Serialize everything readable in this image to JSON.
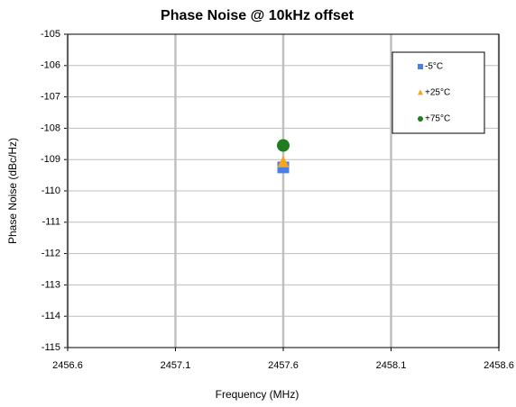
{
  "chart_data": {
    "type": "scatter",
    "title": "Phase Noise @ 10kHz offset",
    "x_label": "Frequency (MHz)",
    "y_label": "Phase Noise (dBc/Hz)",
    "xlim": [
      2456.6,
      2458.6
    ],
    "xticks": [
      2456.6,
      2457.1,
      2457.6,
      2458.1,
      2458.6
    ],
    "ylim": [
      -115,
      -105
    ],
    "yticks": [
      -105,
      -106,
      -107,
      -108,
      -109,
      -110,
      -111,
      -112,
      -113,
      -114,
      -115
    ],
    "grid": true,
    "legend": "upper right",
    "series": [
      {
        "name": "-5°C",
        "color": "#4a7ee8",
        "marker": "square",
        "x": [
          2457.6
        ],
        "values": [
          -109.25
        ]
      },
      {
        "name": "+25°C",
        "color": "#f5a51e",
        "marker": "triangle",
        "x": [
          2457.6
        ],
        "values": [
          -109.1
        ]
      },
      {
        "name": "+75°C",
        "color": "#1e7d1e",
        "marker": "circle",
        "x": [
          2457.6
        ],
        "values": [
          -108.55
        ]
      }
    ]
  }
}
